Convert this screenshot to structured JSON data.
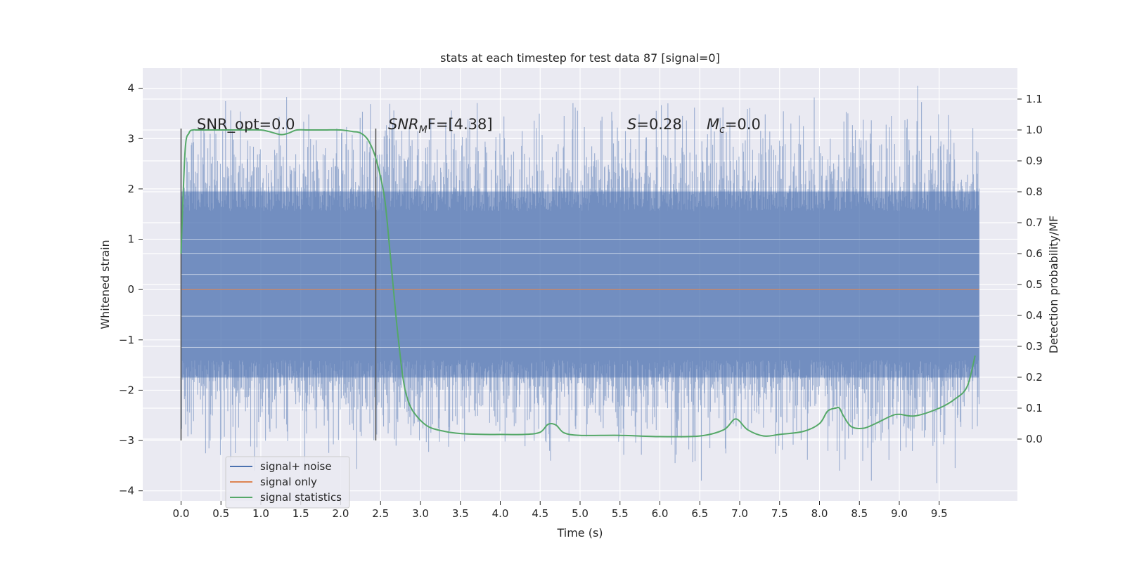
{
  "chart_data": {
    "type": "line",
    "title": "stats at each timestep for test data 87 [signal=0]",
    "xlabel": "Time (s)",
    "ylabel": "Whitened strain",
    "y2label": "Detection probability/MF",
    "xlim": [
      -0.48,
      10.48
    ],
    "ylim": [
      -4.2,
      4.4
    ],
    "y2lim": [
      -0.2,
      1.2
    ],
    "x_ticks": [
      "0.0",
      "0.5",
      "1.0",
      "1.5",
      "2.0",
      "2.5",
      "3.0",
      "3.5",
      "4.0",
      "4.5",
      "5.0",
      "5.5",
      "6.0",
      "6.5",
      "7.0",
      "7.5",
      "8.0",
      "8.5",
      "9.0",
      "9.5"
    ],
    "y_ticks": [
      "−4",
      "−3",
      "−2",
      "−1",
      "0",
      "1",
      "2",
      "3",
      "4"
    ],
    "y2_ticks": [
      "0.0",
      "0.1",
      "0.2",
      "0.3",
      "0.4",
      "0.5",
      "0.6",
      "0.7",
      "0.8",
      "0.9",
      "1.0",
      "1.1"
    ],
    "grid": true,
    "legend_position": "lower-left",
    "annotations": {
      "snr_opt": "SNR_opt=0.0",
      "snr_mf_base": "SNR",
      "snr_mf_sub": "M",
      "snr_mf_rest": "F=[4.38]",
      "s_symbol": "S",
      "s_rest": "=0.28",
      "mc_base": "M",
      "mc_sub": "c",
      "mc_rest": "=0.0"
    },
    "vertical_markers_x": [
      0.0,
      2.44
    ],
    "series": [
      {
        "name": "signal+ noise",
        "color": "#4c72b0",
        "axis": "left",
        "x_range": [
          0.0,
          10.0
        ],
        "core_band": [
          -1.75,
          1.95
        ],
        "envelope_min": -3.85,
        "envelope_max": 4.05,
        "notable_peaks": [
          [
            9.23,
            4.05
          ],
          [
            6.1,
            3.7
          ],
          [
            1.6,
            3.48
          ],
          [
            8.9,
            3.45
          ],
          [
            4.8,
            3.45
          ],
          [
            0.92,
            -3.6
          ],
          [
            4.63,
            -3.4
          ],
          [
            8.25,
            -3.6
          ],
          [
            8.65,
            -3.8
          ],
          [
            9.47,
            -3.85
          ],
          [
            6.52,
            -3.8
          ]
        ]
      },
      {
        "name": "signal only",
        "color": "#dd8452",
        "axis": "left",
        "x": [
          0.0,
          10.0
        ],
        "y": [
          0.0,
          0.0
        ]
      },
      {
        "name": "signal statistics",
        "color": "#55a868",
        "axis": "right",
        "x": [
          0.0,
          0.05,
          0.1,
          0.15,
          0.2,
          0.4,
          0.6,
          0.8,
          1.0,
          1.1,
          1.25,
          1.35,
          1.45,
          1.6,
          1.8,
          2.0,
          2.15,
          2.25,
          2.35,
          2.45,
          2.55,
          2.62,
          2.7,
          2.78,
          2.85,
          2.95,
          3.1,
          3.3,
          3.5,
          3.8,
          4.0,
          4.3,
          4.5,
          4.6,
          4.7,
          4.8,
          5.0,
          5.5,
          6.0,
          6.5,
          6.8,
          6.95,
          7.1,
          7.3,
          7.5,
          7.8,
          8.0,
          8.1,
          8.2,
          8.25,
          8.3,
          8.4,
          8.55,
          8.7,
          8.9,
          9.0,
          9.2,
          9.5,
          9.7,
          9.85,
          9.95
        ],
        "y": [
          0.6,
          0.93,
          0.99,
          1.0,
          1.0,
          1.0,
          1.0,
          1.0,
          1.0,
          0.995,
          0.985,
          0.99,
          1.0,
          1.0,
          1.0,
          1.0,
          0.995,
          0.99,
          0.965,
          0.9,
          0.78,
          0.6,
          0.38,
          0.2,
          0.12,
          0.075,
          0.04,
          0.025,
          0.018,
          0.015,
          0.015,
          0.015,
          0.022,
          0.048,
          0.045,
          0.02,
          0.012,
          0.012,
          0.008,
          0.01,
          0.03,
          0.065,
          0.03,
          0.01,
          0.015,
          0.025,
          0.05,
          0.09,
          0.1,
          0.1,
          0.075,
          0.04,
          0.035,
          0.05,
          0.075,
          0.08,
          0.075,
          0.1,
          0.13,
          0.17,
          0.27
        ]
      }
    ]
  }
}
